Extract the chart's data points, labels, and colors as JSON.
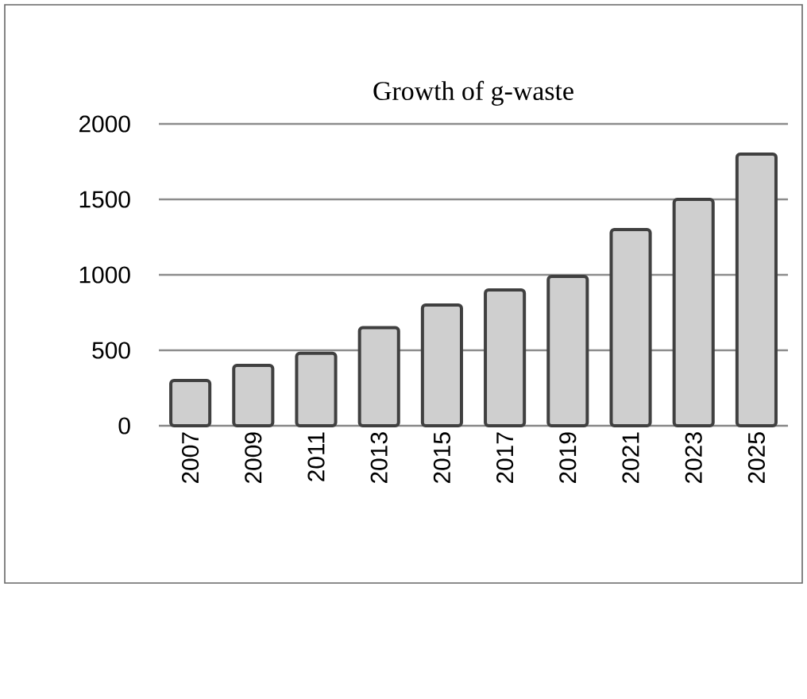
{
  "chart_data": {
    "type": "bar",
    "title": "Growth of g-waste",
    "categories": [
      "2007",
      "2009",
      "2011",
      "2013",
      "2015",
      "2017",
      "2019",
      "2021",
      "2023",
      "2025"
    ],
    "values": [
      300,
      400,
      480,
      650,
      800,
      900,
      990,
      1300,
      1500,
      1800
    ],
    "color": "#cfcfcf",
    "ylim": [
      0,
      2000
    ],
    "yticks": [
      0,
      500,
      1000,
      1500,
      2000
    ],
    "grid": "y"
  }
}
